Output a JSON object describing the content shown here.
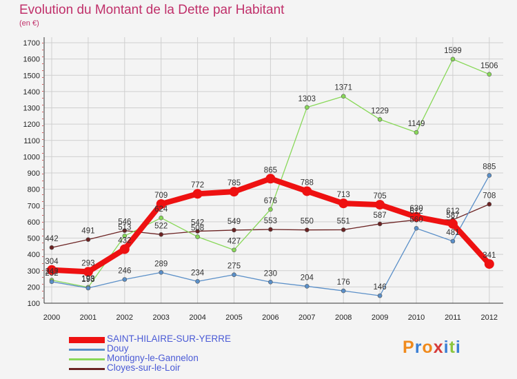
{
  "title": "Evolution du Montant de la Dette par Habitant",
  "subtitle": "(en €)",
  "logo": [
    "P",
    "r",
    "o",
    "x",
    "i",
    "t",
    "i"
  ],
  "chart_data": {
    "type": "line",
    "title": "Evolution du Montant de la Dette par Habitant",
    "subtitle": "(en €)",
    "x": [
      "2000",
      "2001",
      "2002",
      "2003",
      "2004",
      "2005",
      "2006",
      "2007",
      "2008",
      "2009",
      "2010",
      "2011",
      "2012"
    ],
    "ylim": [
      100,
      1700
    ],
    "yticks": [
      100,
      200,
      300,
      400,
      500,
      600,
      700,
      800,
      900,
      1000,
      1100,
      1200,
      1300,
      1400,
      1500,
      1600,
      1700
    ],
    "grid": true,
    "legend_position": "bottom-left",
    "series": [
      {
        "name": "SAINT-HILAIRE-SUR-YERRE",
        "color": "#ee1111",
        "values": [
          304,
          293,
          432,
          709,
          772,
          785,
          865,
          788,
          713,
          705,
          630,
          587,
          341
        ]
      },
      {
        "name": "Douy",
        "color": "#5a8fc8",
        "values": [
          232,
          193,
          246,
          289,
          234,
          275,
          230,
          204,
          176,
          146,
          560,
          481,
          885
        ]
      },
      {
        "name": "Montigny-le-Gannelon",
        "color": "#88d858",
        "values": [
          242,
          198,
          513,
          624,
          508,
          427,
          676,
          1303,
          1371,
          1229,
          1149,
          1599,
          1506
        ]
      },
      {
        "name": "Cloyes-sur-le-Loir",
        "color": "#6b2222",
        "values": [
          442,
          491,
          546,
          522,
          542,
          549,
          553,
          550,
          551,
          587,
          612,
          612,
          708
        ]
      }
    ]
  }
}
